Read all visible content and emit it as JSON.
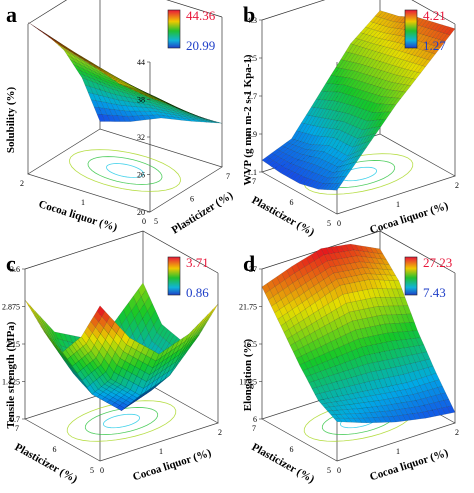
{
  "chart_data": [
    {
      "panel": "a",
      "type": "surface3d",
      "zlabel": "Solubility (%)",
      "xlabel": "Cocoa liquor (%)",
      "ylabel": "Plasticizer (%)",
      "x_ticks": [
        "0",
        "1",
        "2"
      ],
      "y_ticks": [
        "5",
        "6",
        "7"
      ],
      "z_ticks": [
        "20",
        "26",
        "32",
        "38",
        "44"
      ],
      "zlim": [
        20,
        44
      ],
      "colorbar": {
        "max": "44.36",
        "min": "20.99",
        "max_color": "#e8173a",
        "min_color": "#1f3fc8"
      },
      "corners": {
        "x0y0": 38.3,
        "x1y0": 44.3,
        "x0y1": 27,
        "x1y1": 21.2
      },
      "grid": [
        [
          38.3,
          39.0,
          40.8,
          42.3,
          44.3
        ],
        [
          35.5,
          36.3,
          37.6,
          39.0,
          40.6
        ],
        [
          32.4,
          33.3,
          34.0,
          35.0,
          36.2
        ],
        [
          29.6,
          29.8,
          29.8,
          29.7,
          30.0
        ],
        [
          27.0,
          25.8,
          24.8,
          22.7,
          21.2
        ]
      ]
    },
    {
      "panel": "b",
      "type": "surface3d",
      "zlabel": "WVP (g mm m-2 s-1 Kpa-1)",
      "xlabel": "Cocoa liquor (%)",
      "ylabel": "Plasticizer (%)",
      "x_ticks": [
        "0",
        "1",
        "2"
      ],
      "y_ticks": [
        "5",
        "6",
        "7"
      ],
      "z_ticks": [
        "1.1",
        "1.9",
        "2.7",
        "3.5",
        "4.3"
      ],
      "zlim": [
        1.1,
        4.3
      ],
      "colorbar": {
        "max": "4.21",
        "min": "1.27",
        "max_color": "#e8173a",
        "min_color": "#1f3fc8"
      },
      "grid": [
        [
          1.6,
          2.3,
          3.0,
          3.6,
          4.2
        ],
        [
          1.4,
          1.9,
          2.8,
          3.5,
          4.1
        ],
        [
          1.3,
          1.9,
          2.7,
          3.4,
          4.0
        ],
        [
          1.3,
          1.7,
          2.6,
          3.3,
          3.8
        ],
        [
          1.35,
          1.6,
          2.4,
          3.2,
          3.7
        ]
      ]
    },
    {
      "panel": "c",
      "type": "surface3d",
      "zlabel": "Tensile strength (MPa)",
      "xlabel": "Cocoa liquor (%)",
      "ylabel": "Plasticizer (%)",
      "x_ticks": [
        "0",
        "1",
        "2"
      ],
      "y_ticks": [
        "5",
        "6",
        "7"
      ],
      "z_ticks": [
        "0.7",
        "1.425",
        "2.15",
        "2.875",
        "3.6"
      ],
      "zlim": [
        0.7,
        3.6
      ],
      "colorbar": {
        "max": "3.71",
        "min": "0.86",
        "max_color": "#e8173a",
        "min_color": "#1f3fc8"
      },
      "grid": [
        [
          3.7,
          2.9,
          2.4,
          2.6,
          3.0
        ],
        [
          2.9,
          1.9,
          1.4,
          1.6,
          2.2
        ],
        [
          2.4,
          1.4,
          0.9,
          1.1,
          1.9
        ],
        [
          2.6,
          1.6,
          1.1,
          1.2,
          2.0
        ],
        [
          3.0,
          2.2,
          1.9,
          2.0,
          2.6
        ]
      ]
    },
    {
      "panel": "d",
      "type": "surface3d",
      "zlabel": "Elongation (%)",
      "xlabel": "Cocoa liquor (%)",
      "ylabel": "Plasticizer (%)",
      "x_ticks": [
        "0",
        "1",
        "2"
      ],
      "y_ticks": [
        "5",
        "6",
        "7"
      ],
      "z_ticks": [
        "6",
        "11.25",
        "16.5",
        "21.75",
        "27"
      ],
      "zlim": [
        6,
        27
      ],
      "colorbar": {
        "max": "27.23",
        "min": "7.43",
        "max_color": "#e8173a",
        "min_color": "#1f3fc8"
      },
      "grid": [
        [
          11.5,
          10.0,
          8.8,
          8.0,
          7.5
        ],
        [
          13.0,
          12.5,
          12.0,
          11.5,
          11.5
        ],
        [
          16.5,
          17.0,
          17.5,
          17.0,
          16.0
        ],
        [
          20.5,
          22.0,
          23.5,
          23.0,
          21.5
        ],
        [
          24.5,
          26.0,
          27.2,
          26.5,
          24.5
        ]
      ]
    }
  ]
}
